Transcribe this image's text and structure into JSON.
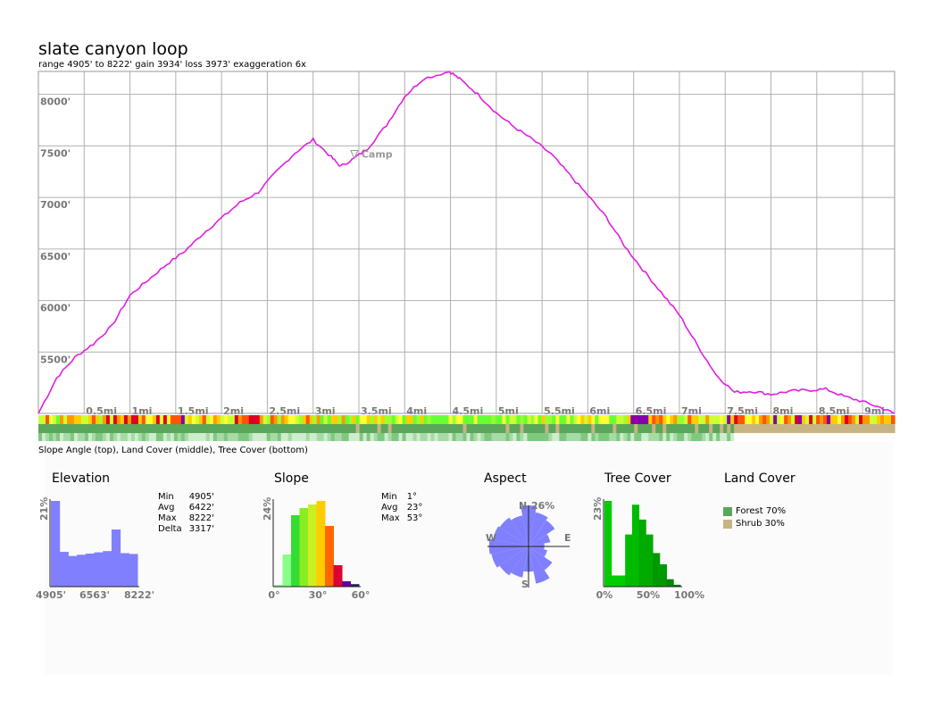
{
  "title": "slate canyon loop",
  "subtitle": "range 4905' to 8222'  gain 3934'  loss 3973'  exaggeration 6x",
  "strip_caption": "Slope Angle (top), Land Cover (middle), Tree Cover (bottom)",
  "colors": {
    "profile": "#e020e0",
    "grid": "#b0b0b0",
    "histogram_blue": "#8080ff",
    "forest": "#5aa65a",
    "shrub": "#c8b482"
  },
  "chart_data": [
    {
      "type": "line",
      "name": "elevation-profile",
      "xlabel": "",
      "ylabel": "",
      "x_unit": "mi",
      "y_unit": "ft",
      "xlim": [
        0,
        9.35
      ],
      "ylim": [
        4905,
        8222
      ],
      "grid": true,
      "y_ticks": [
        "5500'",
        "6000'",
        "6500'",
        "7000'",
        "7500'",
        "8000'"
      ],
      "y_tick_values": [
        5500,
        6000,
        6500,
        7000,
        7500,
        8000
      ],
      "x_ticks": [
        "0.5mi",
        "1mi",
        "1.5mi",
        "2mi",
        "2.5mi",
        "3mi",
        "3.5mi",
        "4mi",
        "4.5mi",
        "5mi",
        "5.5mi",
        "6mi",
        "6.5mi",
        "7mi",
        "7.5mi",
        "8mi",
        "8.5mi",
        "9mi"
      ],
      "x_tick_values": [
        0.5,
        1,
        1.5,
        2,
        2.5,
        3,
        3.5,
        4,
        4.5,
        5,
        5.5,
        6,
        6.5,
        7,
        7.5,
        8,
        8.5,
        9
      ],
      "x": [
        0,
        0.2,
        0.4,
        0.6,
        0.8,
        1.0,
        1.2,
        1.4,
        1.6,
        1.8,
        2.0,
        2.2,
        2.4,
        2.6,
        2.8,
        3.0,
        3.2,
        3.3,
        3.45,
        3.6,
        3.8,
        4.0,
        4.2,
        4.49,
        4.6,
        4.8,
        5.0,
        5.2,
        5.4,
        5.6,
        5.8,
        6.0,
        6.2,
        6.4,
        6.6,
        6.8,
        7.0,
        7.2,
        7.4,
        7.6,
        7.8,
        8.0,
        8.2,
        8.4,
        8.6,
        8.8,
        9.0,
        9.2,
        9.35
      ],
      "values": [
        4905,
        5250,
        5450,
        5580,
        5750,
        6050,
        6200,
        6350,
        6480,
        6650,
        6800,
        6950,
        7050,
        7250,
        7430,
        7560,
        7390,
        7300,
        7380,
        7480,
        7700,
        7980,
        8150,
        8222,
        8150,
        8000,
        7820,
        7680,
        7560,
        7420,
        7220,
        7020,
        6810,
        6530,
        6300,
        6080,
        5860,
        5560,
        5280,
        5110,
        5120,
        5090,
        5120,
        5130,
        5140,
        5070,
        5020,
        4960,
        4905
      ],
      "annotations": [
        {
          "label": "Camp",
          "x": 3.45,
          "y": 7430
        }
      ]
    },
    {
      "type": "bar",
      "name": "elevation-histogram",
      "title": "Elevation",
      "y_tick_label": "21%",
      "x_tick_labels": [
        "4905'",
        "6563'",
        "8222'"
      ],
      "values": [
        21,
        8.5,
        7.5,
        7.8,
        8.1,
        8.4,
        8.7,
        14.0,
        8.2,
        8.0
      ],
      "stats": [
        {
          "label": "Min",
          "value": "4905'"
        },
        {
          "label": "Avg",
          "value": "6422'"
        },
        {
          "label": "Max",
          "value": "8222'"
        },
        {
          "label": "Delta",
          "value": "3317'"
        }
      ]
    },
    {
      "type": "bar",
      "name": "slope-histogram",
      "title": "Slope",
      "y_tick_label": "24%",
      "x_tick_labels": [
        "0°",
        "30°",
        "60°"
      ],
      "values": [
        0.5,
        9,
        20,
        22,
        23,
        24,
        17,
        6,
        1.5,
        0.7
      ],
      "bar_colors": [
        "#88ff88",
        "#88ff88",
        "#33dd33",
        "#88ee22",
        "#ccee22",
        "#ffcc00",
        "#ff6600",
        "#dd0033",
        "#660099",
        "#222266"
      ],
      "stats": [
        {
          "label": "Min",
          "value": "1°"
        },
        {
          "label": "Avg",
          "value": "23°"
        },
        {
          "label": "Max",
          "value": "53°"
        }
      ]
    },
    {
      "type": "pie",
      "name": "aspect-rose",
      "title": "Aspect",
      "max_label": "26%",
      "directions": [
        "N",
        "E",
        "S",
        "W"
      ],
      "sectors": [
        "N",
        "NNE",
        "NE",
        "ENE",
        "E",
        "ESE",
        "SE",
        "SSE",
        "S",
        "SSW",
        "SW",
        "WSW",
        "W",
        "WNW",
        "NW",
        "NNW"
      ],
      "values": [
        26,
        22,
        20,
        14,
        10,
        12,
        18,
        24,
        16,
        20,
        22,
        24,
        25,
        23,
        22,
        20
      ]
    },
    {
      "type": "bar",
      "name": "tree-cover-histogram",
      "title": "Tree Cover",
      "y_tick_label": "23%",
      "x_tick_labels": [
        "0%",
        "50%",
        "100%"
      ],
      "values": [
        23,
        3,
        3,
        14,
        22,
        18,
        14,
        9,
        6,
        2,
        0.5
      ],
      "bar_colors": [
        "#00cc00",
        "#00cc00",
        "#00cc00",
        "#00bb00",
        "#00bb00",
        "#00aa00",
        "#00aa00",
        "#009900",
        "#009900",
        "#008800",
        "#007700"
      ]
    },
    {
      "type": "pie",
      "name": "land-cover",
      "title": "Land Cover",
      "categories": [
        "Forest",
        "Shrub"
      ],
      "values": [
        70,
        30
      ],
      "labels": [
        "Forest 70%",
        "Shrub 30%"
      ]
    }
  ]
}
